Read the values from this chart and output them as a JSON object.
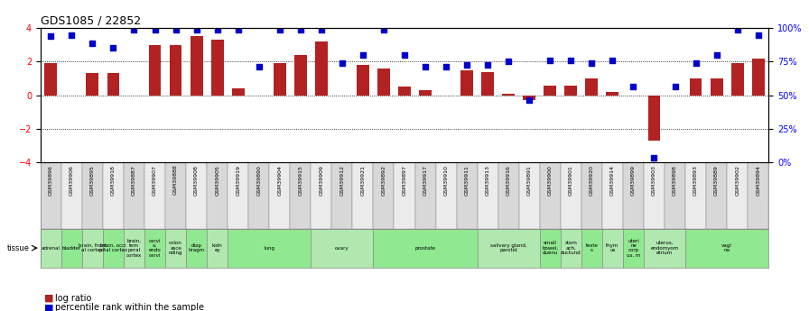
{
  "title": "GDS1085 / 22852",
  "sample_ids": [
    "GSM39896",
    "GSM39906",
    "GSM39895",
    "GSM39918",
    "GSM39887",
    "GSM39907",
    "GSM39888",
    "GSM39908",
    "GSM39905",
    "GSM39919",
    "GSM39890",
    "GSM39904",
    "GSM39915",
    "GSM39909",
    "GSM39912",
    "GSM39921",
    "GSM39892",
    "GSM39897",
    "GSM39917",
    "GSM39910",
    "GSM39911",
    "GSM39913",
    "GSM39916",
    "GSM39891",
    "GSM39900",
    "GSM39901",
    "GSM39920",
    "GSM39914",
    "GSM39899",
    "GSM39903",
    "GSM39898",
    "GSM39893",
    "GSM39889",
    "GSM39902",
    "GSM39894"
  ],
  "log_ratio": [
    1.9,
    0.0,
    1.3,
    1.3,
    0.0,
    3.0,
    3.0,
    3.5,
    3.3,
    0.4,
    0.0,
    1.9,
    2.4,
    3.2,
    0.0,
    1.8,
    1.6,
    0.5,
    0.3,
    0.0,
    1.5,
    1.4,
    0.1,
    -0.3,
    0.6,
    0.6,
    1.0,
    0.2,
    0.0,
    -2.7,
    0.0,
    1.0,
    1.0,
    1.9,
    2.2
  ],
  "percentile_rank_norm": [
    3.5,
    3.6,
    3.1,
    2.8,
    3.9,
    3.9,
    3.9,
    3.9,
    3.9,
    3.9,
    1.7,
    3.9,
    3.9,
    3.9,
    1.9,
    2.4,
    3.9,
    2.4,
    1.7,
    1.7,
    1.8,
    1.8,
    2.0,
    -0.3,
    2.1,
    2.1,
    1.9,
    2.1,
    0.5,
    -3.7,
    0.5,
    1.9,
    2.4,
    3.9,
    3.6
  ],
  "tissues": [
    {
      "label": "adrenal",
      "start": 0,
      "end": 1,
      "color": "#b0e8b0"
    },
    {
      "label": "bladder",
      "start": 1,
      "end": 2,
      "color": "#90e890"
    },
    {
      "label": "brain, front\nal cortex",
      "start": 2,
      "end": 3,
      "color": "#b0e8b0"
    },
    {
      "label": "brain, occi\npital cortex",
      "start": 3,
      "end": 4,
      "color": "#90e890"
    },
    {
      "label": "brain,\ntem\nporal\ncortex",
      "start": 4,
      "end": 5,
      "color": "#b0e8b0"
    },
    {
      "label": "cervi\nx,\nendo\ncervi",
      "start": 5,
      "end": 6,
      "color": "#90e890"
    },
    {
      "label": "colon\nasce\nnding",
      "start": 6,
      "end": 7,
      "color": "#b0e8b0"
    },
    {
      "label": "diap\nhragm",
      "start": 7,
      "end": 8,
      "color": "#90e890"
    },
    {
      "label": "kidn\ney",
      "start": 8,
      "end": 9,
      "color": "#b0e8b0"
    },
    {
      "label": "lung",
      "start": 9,
      "end": 13,
      "color": "#90e890"
    },
    {
      "label": "ovary",
      "start": 13,
      "end": 16,
      "color": "#b0e8b0"
    },
    {
      "label": "prostate",
      "start": 16,
      "end": 21,
      "color": "#90e890"
    },
    {
      "label": "salivary gland,\nparotid",
      "start": 21,
      "end": 24,
      "color": "#b0e8b0"
    },
    {
      "label": "small\nbowel,\nduenu",
      "start": 24,
      "end": 25,
      "color": "#90e890"
    },
    {
      "label": "stom\nach,\nductund",
      "start": 25,
      "end": 26,
      "color": "#b0e8b0"
    },
    {
      "label": "teste\ns",
      "start": 26,
      "end": 27,
      "color": "#90e890"
    },
    {
      "label": "thym\nus",
      "start": 27,
      "end": 28,
      "color": "#b0e8b0"
    },
    {
      "label": "uteri\nne\ncorp\nus, m",
      "start": 28,
      "end": 29,
      "color": "#90e890"
    },
    {
      "label": "uterus,\nendomyom\netrium",
      "start": 29,
      "end": 31,
      "color": "#b0e8b0"
    },
    {
      "label": "vagi\nna",
      "start": 31,
      "end": 35,
      "color": "#90e890"
    }
  ],
  "bar_color": "#b22222",
  "dot_color": "#0000cc",
  "ylim": [
    -4,
    4
  ],
  "yticks_left": [
    -4,
    -2,
    0,
    2,
    4
  ],
  "yticks_right_labels": [
    "0%",
    "25%",
    "50%",
    "75%",
    "100%"
  ],
  "background_color": "#ffffff"
}
